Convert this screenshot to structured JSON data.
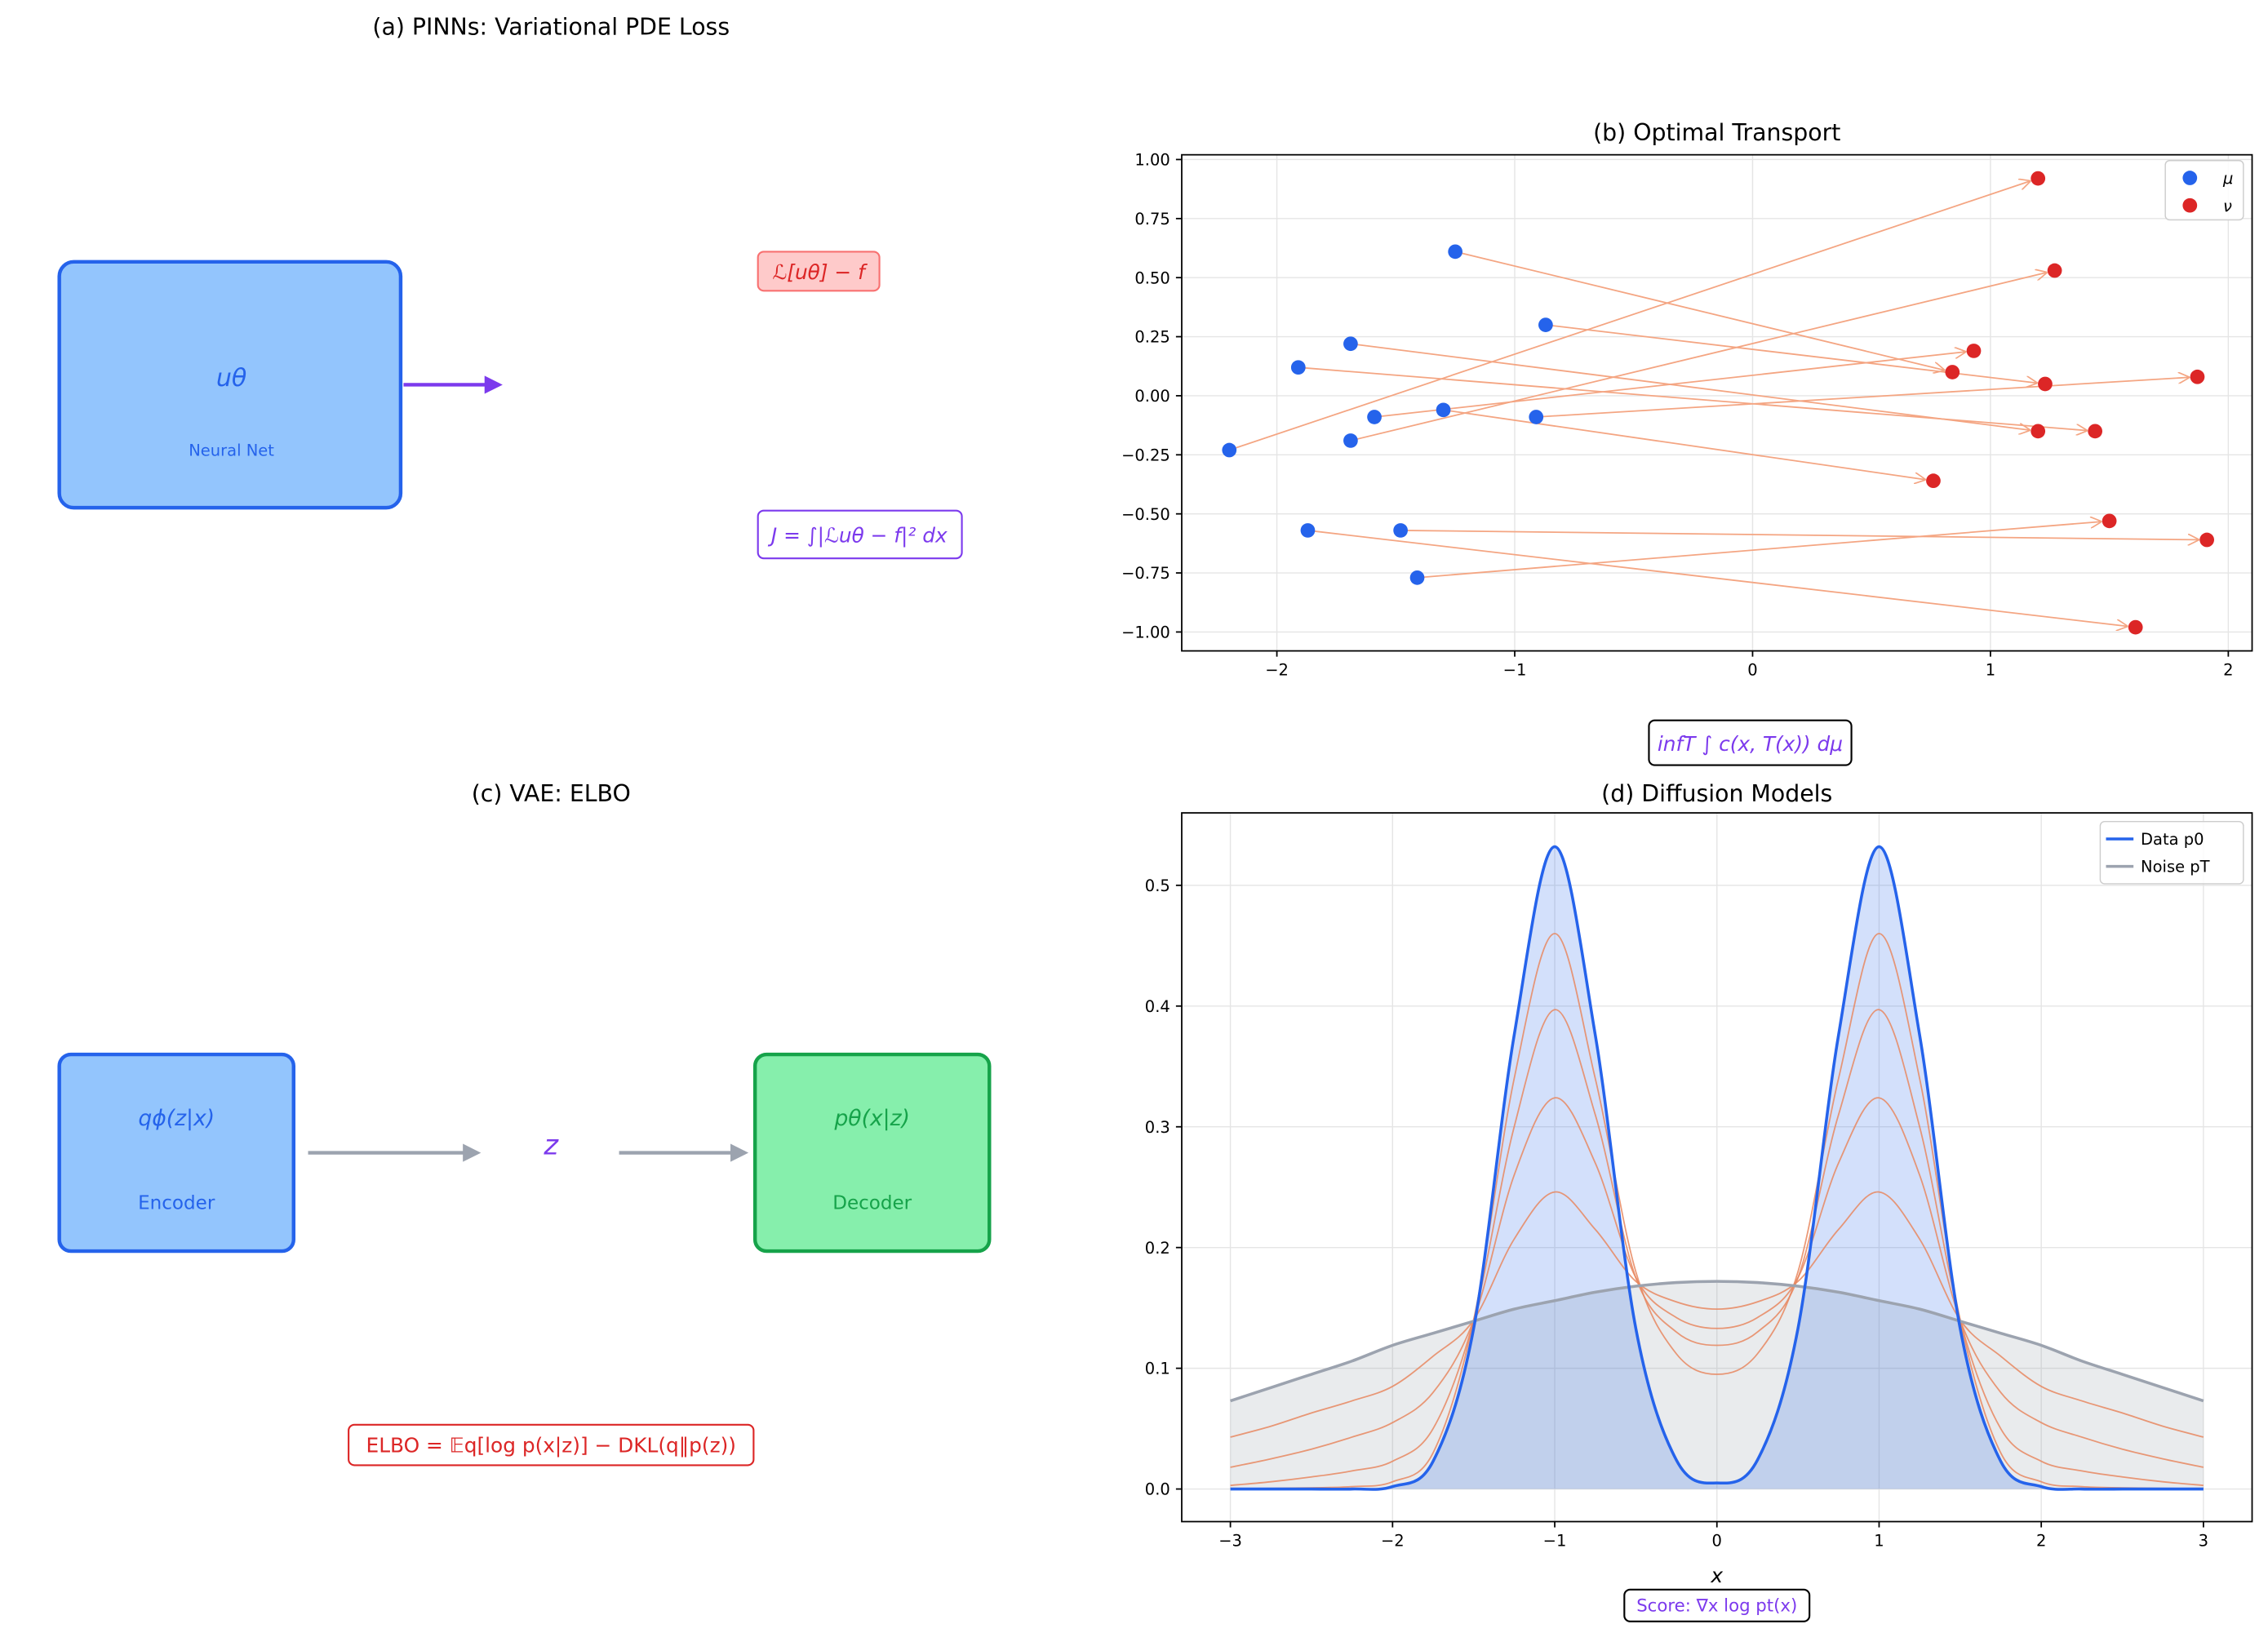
{
  "panel_a": {
    "title": "(a) PINNs: Variational PDE Loss",
    "box_symbol": "uθ",
    "box_label": "Neural Net",
    "residual_label": "ℒ[uθ] − f",
    "functional_label": "J = ∫|ℒuθ − f|² dx",
    "colors": {
      "box_fill": "#93c5fd",
      "box_stroke": "#2563eb",
      "arrow": "#7c3aed",
      "residual_fill": "#fecaca",
      "residual_stroke": "#f87171",
      "residual_text": "#dc2626",
      "functional": "#7c3aed"
    }
  },
  "panel_c": {
    "title": "(c) VAE: ELBO",
    "encoder_symbol": "qϕ(z|x)",
    "encoder_label": "Encoder",
    "latent_symbol": "z",
    "decoder_symbol": "pθ(x|z)",
    "decoder_label": "Decoder",
    "elbo_label": "ELBO  = 𝔼q[log p(x|z)] − DKL(q‖p(z))",
    "colors": {
      "encoder_fill": "#93c5fd",
      "encoder_stroke": "#2563eb",
      "decoder_fill": "#86efac",
      "decoder_stroke": "#16a34a",
      "arrow": "#9ca3af",
      "latent": "#7c3aed",
      "elbo": "#dc2626"
    }
  },
  "chart_data": [
    {
      "type": "scatter",
      "title": "(b) Optimal Transport",
      "annotation": "infT ∫ c(x, T(x)) dμ",
      "xlim": [
        -2.4,
        2.1
      ],
      "ylim": [
        -1.08,
        1.02
      ],
      "xticks": [
        "−2",
        "−1",
        "0",
        "1",
        "2"
      ],
      "xtick_values": [
        -2,
        -1,
        0,
        1,
        2
      ],
      "yticks": [
        "−1.00",
        "−0.75",
        "−0.50",
        "−0.25",
        "0.00",
        "0.25",
        "0.50",
        "0.75",
        "1.00"
      ],
      "ytick_values": [
        -1,
        -0.75,
        -0.5,
        -0.25,
        0,
        0.25,
        0.5,
        0.75,
        1
      ],
      "grid": true,
      "legend": "top-right",
      "series": [
        {
          "name": "μ",
          "color": "#2563eb",
          "points": [
            [
              -2.2,
              -0.23
            ],
            [
              -1.25,
              0.61
            ],
            [
              -0.87,
              0.3
            ],
            [
              -1.69,
              0.22
            ],
            [
              -1.91,
              0.12
            ],
            [
              -1.59,
              -0.09
            ],
            [
              -1.3,
              -0.06
            ],
            [
              -0.91,
              -0.09
            ],
            [
              -1.69,
              -0.19
            ],
            [
              -1.87,
              -0.57
            ],
            [
              -1.48,
              -0.57
            ],
            [
              -1.41,
              -0.77
            ]
          ]
        },
        {
          "name": "ν",
          "color": "#dc2626",
          "points": [
            [
              1.2,
              0.92
            ],
            [
              0.84,
              0.1
            ],
            [
              1.23,
              0.05
            ],
            [
              1.2,
              -0.15
            ],
            [
              1.44,
              -0.15
            ],
            [
              0.93,
              0.19
            ],
            [
              0.76,
              -0.36
            ],
            [
              1.87,
              0.08
            ],
            [
              1.27,
              0.53
            ],
            [
              1.61,
              -0.98
            ],
            [
              1.91,
              -0.61
            ],
            [
              1.5,
              -0.53
            ]
          ]
        }
      ],
      "transport_color": "#f4a582"
    },
    {
      "type": "line",
      "title": "(d) Diffusion Models",
      "xlabel": "x",
      "annotation": "Score: ∇x log pt(x)",
      "xlim": [
        -3.3,
        3.3
      ],
      "ylim": [
        -0.027,
        0.56
      ],
      "xticks": [
        "−3",
        "−2",
        "−1",
        "0",
        "1",
        "2",
        "3"
      ],
      "xtick_values": [
        -3,
        -2,
        -1,
        0,
        1,
        2,
        3
      ],
      "yticks": [
        "0.0",
        "0.1",
        "0.2",
        "0.3",
        "0.4",
        "0.5"
      ],
      "ytick_values": [
        0,
        0.1,
        0.2,
        0.3,
        0.4,
        0.5
      ],
      "grid": true,
      "legend": "top-right",
      "x": [
        -3,
        -2.75,
        -2.5,
        -2.25,
        -2,
        -1.75,
        -1.5,
        -1.25,
        -1,
        -0.75,
        -0.5,
        -0.25,
        0,
        0.25,
        0.5,
        0.75,
        1,
        1.25,
        1.5,
        1.75,
        2,
        2.25,
        2.5,
        2.75,
        3
      ],
      "series": [
        {
          "name": "Data p0",
          "color": "#2563eb",
          "fill": true,
          "values": [
            0,
            0,
            0,
            0,
            0.002,
            0.023,
            0.133,
            0.376,
            0.532,
            0.376,
            0.133,
            0.024,
            0.005,
            0.024,
            0.133,
            0.376,
            0.532,
            0.376,
            0.133,
            0.023,
            0.002,
            0,
            0,
            0,
            0
          ]
        },
        {
          "name": "Noise pT",
          "color": "#9ca3af",
          "fill": true,
          "values": [
            0.073,
            0.084,
            0.095,
            0.106,
            0.119,
            0.129,
            0.139,
            0.149,
            0.156,
            0.163,
            0.168,
            0.171,
            0.172,
            0.171,
            0.168,
            0.163,
            0.156,
            0.149,
            0.139,
            0.129,
            0.119,
            0.106,
            0.095,
            0.084,
            0.073
          ]
        },
        {
          "color": "#e8875f",
          "values": [
            0.0005,
            0.0005,
            0.001,
            0.002,
            0.006,
            0.03,
            0.14,
            0.34,
            0.46,
            0.34,
            0.18,
            0.112,
            0.095,
            0.112,
            0.18,
            0.34,
            0.46,
            0.34,
            0.14,
            0.03,
            0.006,
            0.002,
            0.001,
            0.0005,
            0.0005
          ]
        },
        {
          "color": "#e8875f",
          "values": [
            0.003,
            0.006,
            0.01,
            0.015,
            0.023,
            0.05,
            0.14,
            0.3,
            0.397,
            0.31,
            0.175,
            0.13,
            0.119,
            0.13,
            0.175,
            0.31,
            0.397,
            0.3,
            0.14,
            0.05,
            0.023,
            0.015,
            0.01,
            0.006,
            0.003
          ]
        },
        {
          "color": "#e8875f",
          "values": [
            0.018,
            0.025,
            0.033,
            0.043,
            0.055,
            0.08,
            0.14,
            0.26,
            0.324,
            0.27,
            0.175,
            0.142,
            0.133,
            0.142,
            0.175,
            0.27,
            0.324,
            0.26,
            0.14,
            0.08,
            0.055,
            0.043,
            0.033,
            0.025,
            0.018
          ]
        },
        {
          "color": "#e8875f",
          "values": [
            0.043,
            0.052,
            0.063,
            0.073,
            0.085,
            0.11,
            0.14,
            0.207,
            0.246,
            0.215,
            0.172,
            0.155,
            0.149,
            0.155,
            0.172,
            0.215,
            0.246,
            0.207,
            0.14,
            0.11,
            0.085,
            0.073,
            0.063,
            0.052,
            0.043
          ]
        }
      ]
    }
  ]
}
